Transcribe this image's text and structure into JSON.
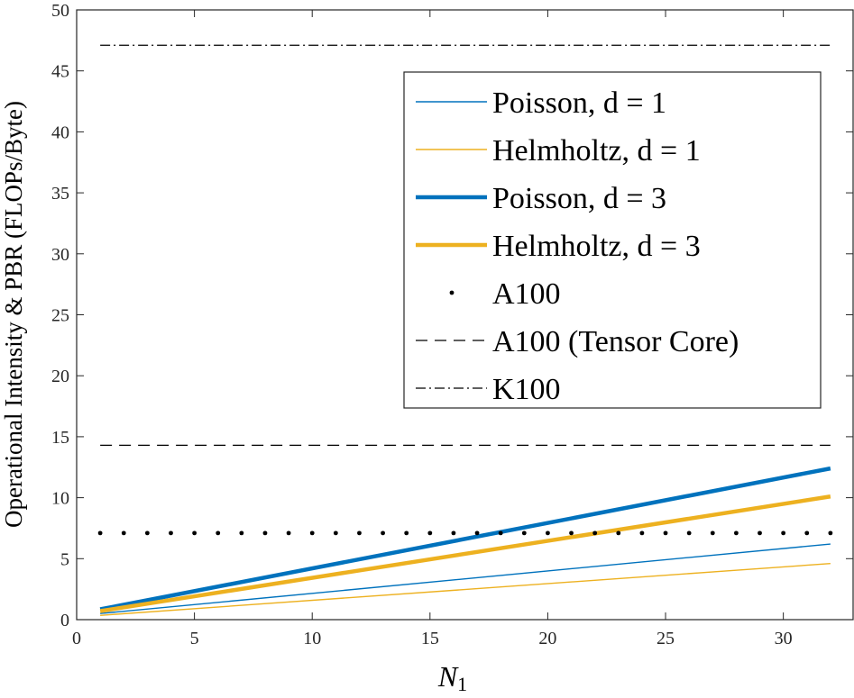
{
  "chart_data": {
    "type": "line",
    "title": "",
    "xlabel": "N",
    "xlabel_subscript": "1",
    "ylabel": "Operational Intensity  &  PBR  (FLOPs/Byte)",
    "xlim": [
      0,
      33
    ],
    "ylim": [
      0,
      50
    ],
    "xticks": [
      0,
      5,
      10,
      15,
      20,
      25,
      30
    ],
    "yticks": [
      0,
      5,
      10,
      15,
      20,
      25,
      30,
      35,
      40,
      45,
      50
    ],
    "grid": false,
    "legend_position": "top-right",
    "series": [
      {
        "name": "Poisson, d = 1",
        "style": "solid",
        "width": "thin",
        "color": "#0072BD",
        "x": [
          1,
          32
        ],
        "y": [
          0.5,
          6.2
        ]
      },
      {
        "name": "Helmholtz, d = 1",
        "style": "solid",
        "width": "thin",
        "color": "#EDB120",
        "x": [
          1,
          32
        ],
        "y": [
          0.35,
          4.6
        ]
      },
      {
        "name": "Poisson, d = 3",
        "style": "solid",
        "width": "thick",
        "color": "#0072BD",
        "x": [
          1,
          32
        ],
        "y": [
          0.85,
          12.4
        ]
      },
      {
        "name": "Helmholtz, d = 3",
        "style": "solid",
        "width": "thick",
        "color": "#EDB120",
        "x": [
          1,
          32
        ],
        "y": [
          0.7,
          10.1
        ]
      },
      {
        "name": "A100",
        "style": "dotted",
        "color": "#000000",
        "x": [
          1,
          32
        ],
        "y": [
          7.1,
          7.1
        ]
      },
      {
        "name": "A100 (Tensor Core)",
        "style": "dashed",
        "color": "#000000",
        "x": [
          1,
          32
        ],
        "y": [
          14.3,
          14.3
        ]
      },
      {
        "name": "K100",
        "style": "dashdot",
        "color": "#000000",
        "x": [
          1,
          32
        ],
        "y": [
          47.1,
          47.1
        ]
      }
    ]
  }
}
